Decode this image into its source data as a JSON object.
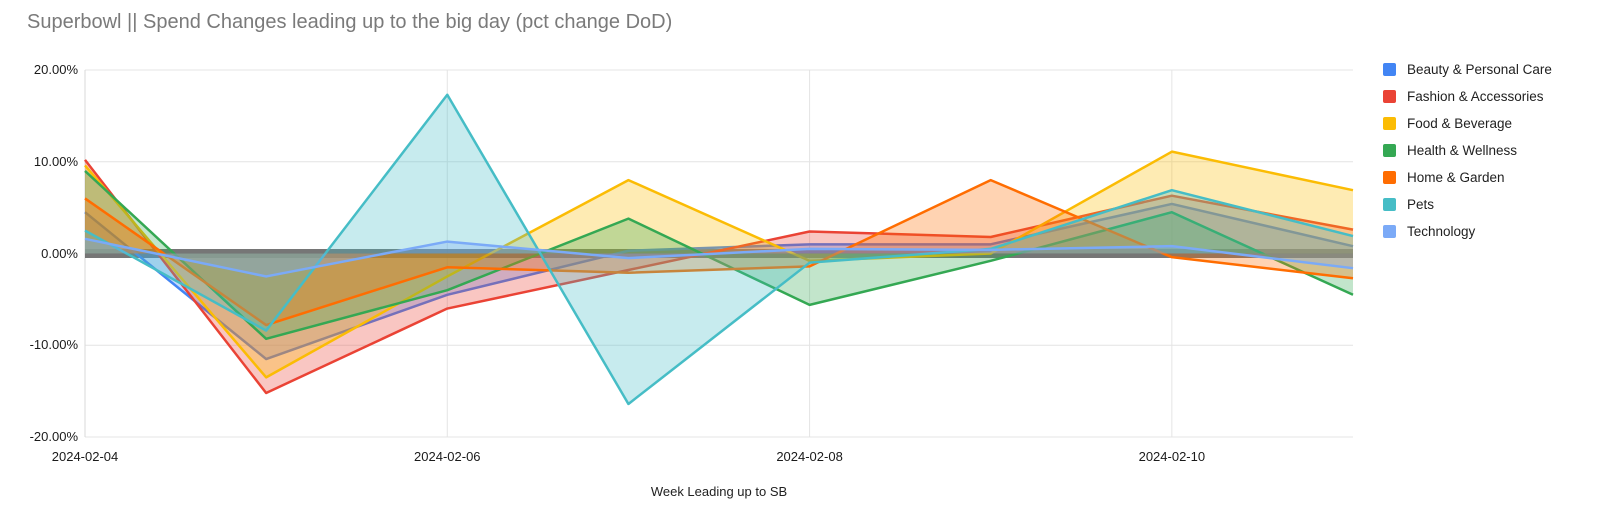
{
  "title": "Superbowl || Spend Changes leading up to the big day (pct change DoD)",
  "chart_data": {
    "type": "area",
    "title": "Superbowl || Spend Changes leading up to the big day (pct change DoD)",
    "xlabel": "Week Leading up to SB",
    "ylabel": "",
    "x": [
      "2024-02-04",
      "2024-02-05",
      "2024-02-06",
      "2024-02-07",
      "2024-02-08",
      "2024-02-09",
      "2024-02-10",
      "2024-02-11"
    ],
    "x_tick_indices": [
      0,
      2,
      4,
      6
    ],
    "ylim": [
      -20,
      20
    ],
    "y_ticks": [
      {
        "value": 20,
        "label": "20.00%"
      },
      {
        "value": 10,
        "label": "10.00%"
      },
      {
        "value": 0,
        "label": "0.00%"
      },
      {
        "value": -10,
        "label": "-10.00%"
      },
      {
        "value": -20,
        "label": "-20.00%"
      }
    ],
    "grid": true,
    "legend_position": "right",
    "zero_band_color": "#5e5e5e",
    "fill_opacity": 0.3,
    "series": [
      {
        "name": "Beauty & Personal Care",
        "color": "#4285F4",
        "values": [
          4.5,
          -11.5,
          -4.5,
          0.3,
          1.0,
          1.0,
          5.4,
          0.8
        ]
      },
      {
        "name": "Fashion & Accessories",
        "color": "#EA4335",
        "values": [
          10.2,
          -15.2,
          -6.0,
          -1.8,
          2.4,
          1.8,
          6.3,
          2.6
        ]
      },
      {
        "name": "Food & Beverage",
        "color": "#FBBC04",
        "values": [
          9.6,
          -13.5,
          -2.5,
          8.0,
          -0.8,
          0.0,
          11.1,
          6.9
        ]
      },
      {
        "name": "Health & Wellness",
        "color": "#34A853",
        "values": [
          9.0,
          -9.3,
          -4.0,
          3.8,
          -5.6,
          -0.8,
          4.5,
          -4.5
        ]
      },
      {
        "name": "Home & Garden",
        "color": "#FF6D01",
        "values": [
          6.0,
          -7.8,
          -1.5,
          -2.1,
          -1.4,
          8.0,
          -0.4,
          -2.7
        ]
      },
      {
        "name": "Pets",
        "color": "#46BDC6",
        "values": [
          2.5,
          -8.4,
          17.3,
          -16.4,
          -1.0,
          0.5,
          6.9,
          1.9
        ]
      },
      {
        "name": "Technology",
        "color": "#7BAAF7",
        "values": [
          1.6,
          -2.5,
          1.3,
          -0.5,
          0.5,
          0.4,
          0.8,
          -1.6
        ]
      }
    ]
  }
}
